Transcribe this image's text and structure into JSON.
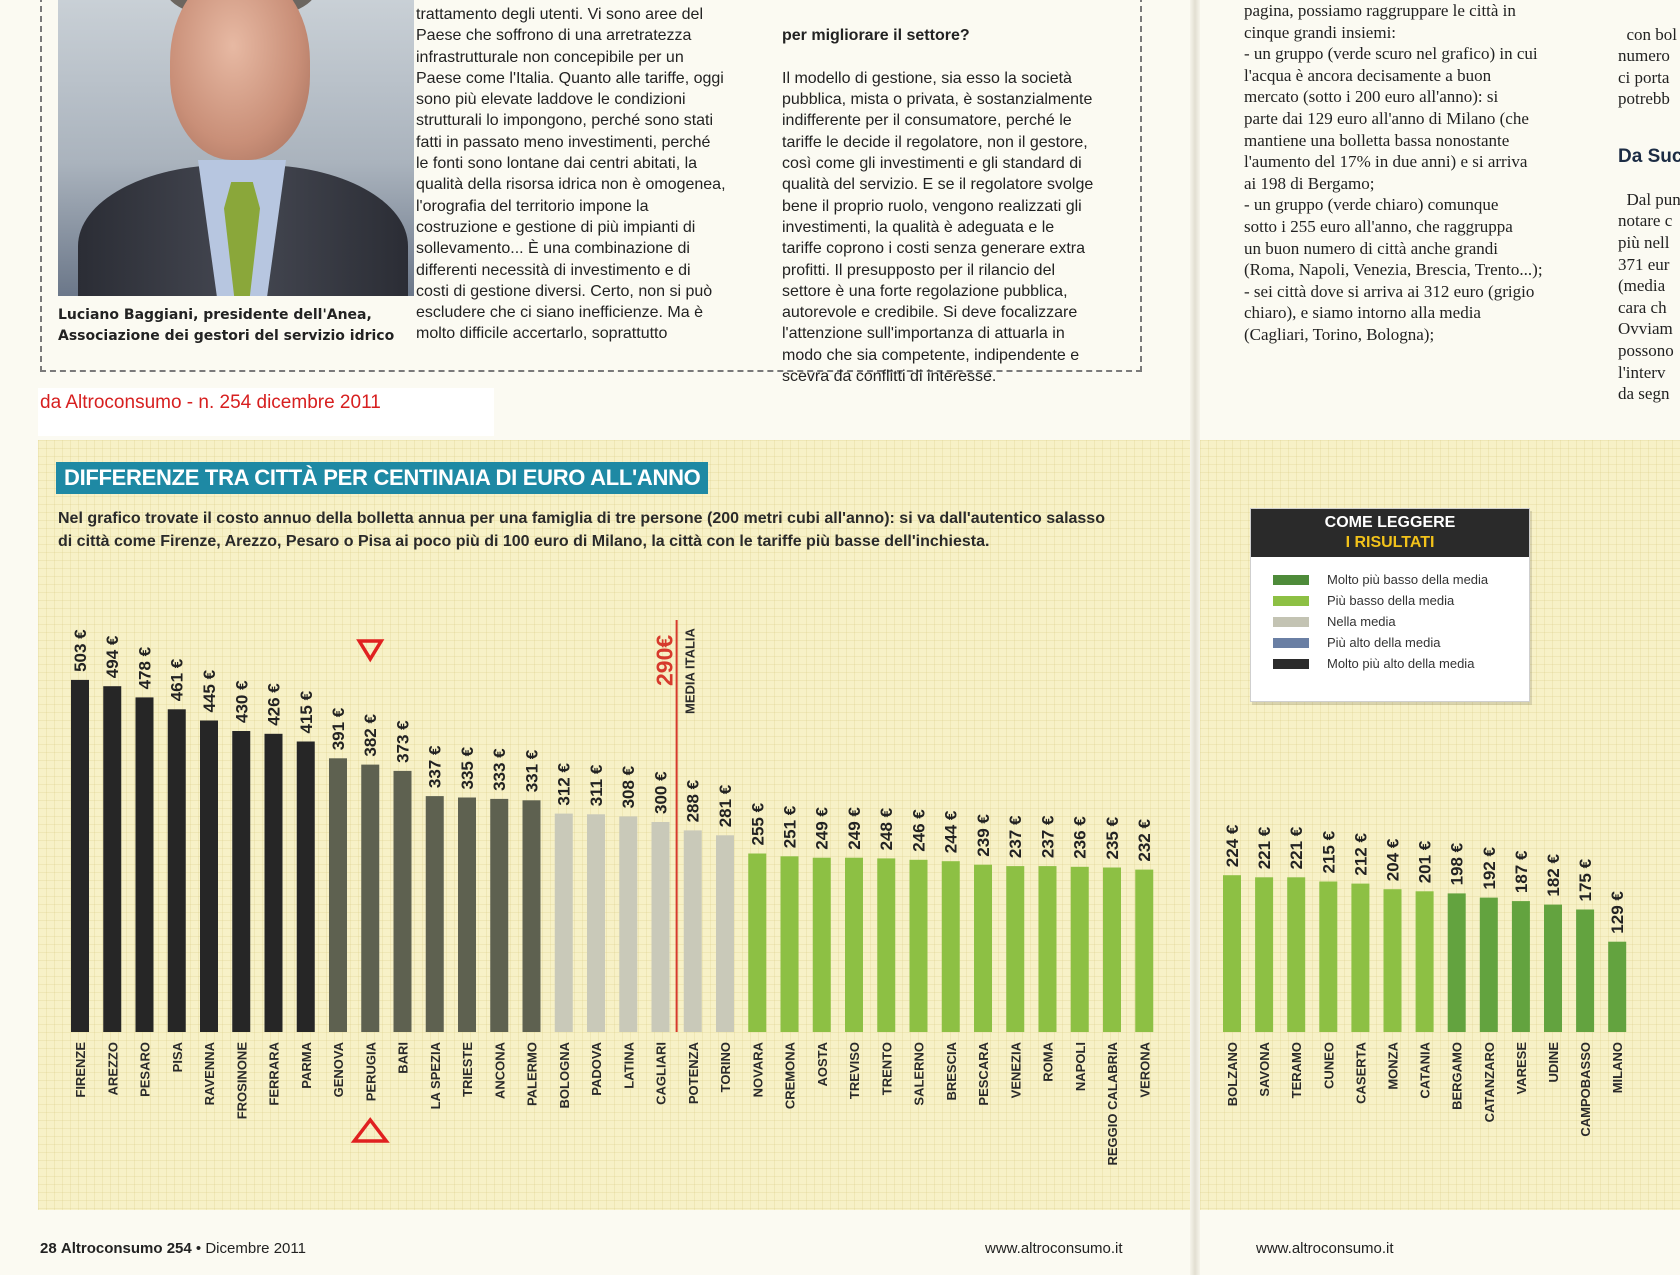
{
  "article": {
    "caption": "Luciano Baggiani, presidente dell'Anea,\nAssociazione dei gestori del servizio idrico",
    "col1_text": "trattamento degli utenti. Vi sono aree del\nPaese che soffrono di una arretratezza\ninfrastrutturale non concepibile per un\nPaese come l'Italia. Quanto alle tariffe, oggi\nsono più elevate laddove le condizioni\nstrutturali lo impongono, perché sono stati\nfatti in passato meno investimenti, perché\nle fonti sono lontane dai centri abitati, la\nqualità della risorsa idrica non è omogenea,\nl'orografia del territorio impone la\ncostruzione e gestione di più impianti di\nsollevamento... È una combinazione di\ndifferenti necessità di investimento e di\ncosti di gestione diversi. Certo, non si può\nescludere che ci siano inefficienze. Ma è\nmolto difficile accertarlo, soprattutto",
    "col2_heading": "per migliorare il settore?",
    "col2_text": "Il modello di gestione, sia esso la società\npubblica, mista o privata, è sostanzialmente\nindifferente per il consumatore, perché le\ntariffe le decide il regolatore, non il gestore,\ncosì come gli investimenti e gli standard di\nqualità del servizio. E se il regolatore svolge\nbene il proprio ruolo, vengono realizzati gli\ninvestimenti, la qualità è adeguata e le\ntariffe coprono i costi senza generare extra\nprofitti. Il presupposto per il rilancio del\nsettore è una forte regolazione pubblica,\nautorevole e credibile. Si deve focalizzare\nl'attenzione sull'importanza di attuarla in\nmodo che sia competente, indipendente e\nscevra da conflitti di interesse.",
    "col3_text": "pagina, possiamo raggruppare le città in\ncinque grandi insiemi:\n- un gruppo (verde scuro nel grafico) in cui\nl'acqua è ancora decisamente a buon\nmercato (sotto i 200 euro all'anno): si\nparte dai 129 euro all'anno di Milano (che\nmantiene una bolletta bassa nonostante\nl'aumento del 17% in due anni) e si arriva\nai 198 di Bergamo;\n- un gruppo (verde chiaro) comunque\nsotto i 255 euro all'anno, che raggruppa\nun buon numero di città anche grandi\n(Roma, Napoli, Venezia, Brescia, Trento...);\n- sei città dove si arriva ai 312 euro (grigio\nchiaro), e siamo intorno alla media\n(Cagliari, Torino, Bologna);",
    "col4_top": "con bol\nnumero\nci porta\npotrebb",
    "col4_heading": "Da Suc",
    "col4_text": "Dal pun\nnotare c\npiù nell\n371 eur\n(media\ncara ch\nOvviam\npossono\nl'interv\nda segn"
  },
  "source_note": "da Altroconsumo - n. 254 dicembre 2011",
  "footer": {
    "page_num": "28",
    "magazine": "Altroconsumo 254",
    "sep": "•",
    "date": "Dicembre 2011",
    "url_left": "www.altroconsumo.it",
    "url_right": "www.altroconsumo.it"
  },
  "legend": {
    "title_line1": "COME LEGGERE",
    "title_line2": "I RISULTATI",
    "items": [
      {
        "label": "Molto più basso della media",
        "color": "#4e8b3a"
      },
      {
        "label": "Più basso della media",
        "color": "#8dc044"
      },
      {
        "label": "Nella media",
        "color": "#c3c3b3"
      },
      {
        "label": "Più alto della media",
        "color": "#6a7fa4"
      },
      {
        "label": "Molto più alto della media",
        "color": "#2b2b2b"
      }
    ]
  },
  "chart_data": {
    "type": "bar",
    "title": "DIFFERENZE TRA CITTÀ PER CENTINAIA DI EURO ALL'ANNO",
    "subtitle": "Nel grafico trovate il costo annuo della bolletta annua per una famiglia di tre persone (200 metri cubi all'anno):  si va dall'autentico salasso\ndi città come Firenze, Arezzo, Pesaro o Pisa ai poco più di 100 euro di Milano, la città con le tariffe più basse dell'inchiesta.",
    "unit_suffix": " €",
    "average": {
      "value": 290,
      "label": "290€",
      "sublabel": "MEDIA ITALIA"
    },
    "ylim": [
      0,
      520
    ],
    "categories": [
      "FIRENZE",
      "AREZZO",
      "PESARO",
      "PISA",
      "RAVENNA",
      "FROSINONE",
      "FERRARA",
      "PARMA",
      "GENOVA",
      "PERUGIA",
      "BARI",
      "LA SPEZIA",
      "TRIESTE",
      "ANCONA",
      "PALERMO",
      "BOLOGNA",
      "PADOVA",
      "LATINA",
      "CAGLIARI",
      "POTENZA",
      "TORINO",
      "NOVARA",
      "CREMONA",
      "AOSTA",
      "TREVISO",
      "TRENTO",
      "SALERNO",
      "BRESCIA",
      "PESCARA",
      "VENEZIA",
      "ROMA",
      "NAPOLI",
      "REGGIO CALABRIA",
      "VERONA",
      "BOLZANO",
      "SAVONA",
      "TERAMO",
      "CUNEO",
      "CASERTA",
      "MONZA",
      "CATANIA",
      "BERGAMO",
      "CATANZARO",
      "VARESE",
      "UDINE",
      "CAMPOBASSO",
      "MILANO"
    ],
    "values": [
      503,
      494,
      478,
      461,
      445,
      430,
      426,
      415,
      391,
      382,
      373,
      337,
      335,
      333,
      331,
      312,
      311,
      308,
      300,
      288,
      281,
      255,
      251,
      249,
      249,
      248,
      246,
      244,
      239,
      237,
      237,
      236,
      235,
      232,
      224,
      221,
      221,
      215,
      212,
      204,
      201,
      198,
      192,
      187,
      182,
      175,
      129
    ],
    "groups": [
      "very_high",
      "very_high",
      "very_high",
      "very_high",
      "very_high",
      "very_high",
      "very_high",
      "very_high",
      "high",
      "high",
      "high",
      "high",
      "high",
      "high",
      "high",
      "average",
      "average",
      "average",
      "average",
      "average",
      "average",
      "low",
      "low",
      "low",
      "low",
      "low",
      "low",
      "low",
      "low",
      "low",
      "low",
      "low",
      "low",
      "low",
      "low",
      "low",
      "low",
      "low",
      "low",
      "low",
      "low",
      "very_low",
      "very_low",
      "very_low",
      "very_low",
      "very_low",
      "very_low"
    ],
    "group_colors": {
      "very_high": "#262626",
      "high": "#5e6150",
      "average": "#c9c9b9",
      "low": "#8dc044",
      "very_low": "#63a33f"
    },
    "highlight": {
      "category": "PERUGIA",
      "marker_color": "#e02020"
    }
  }
}
